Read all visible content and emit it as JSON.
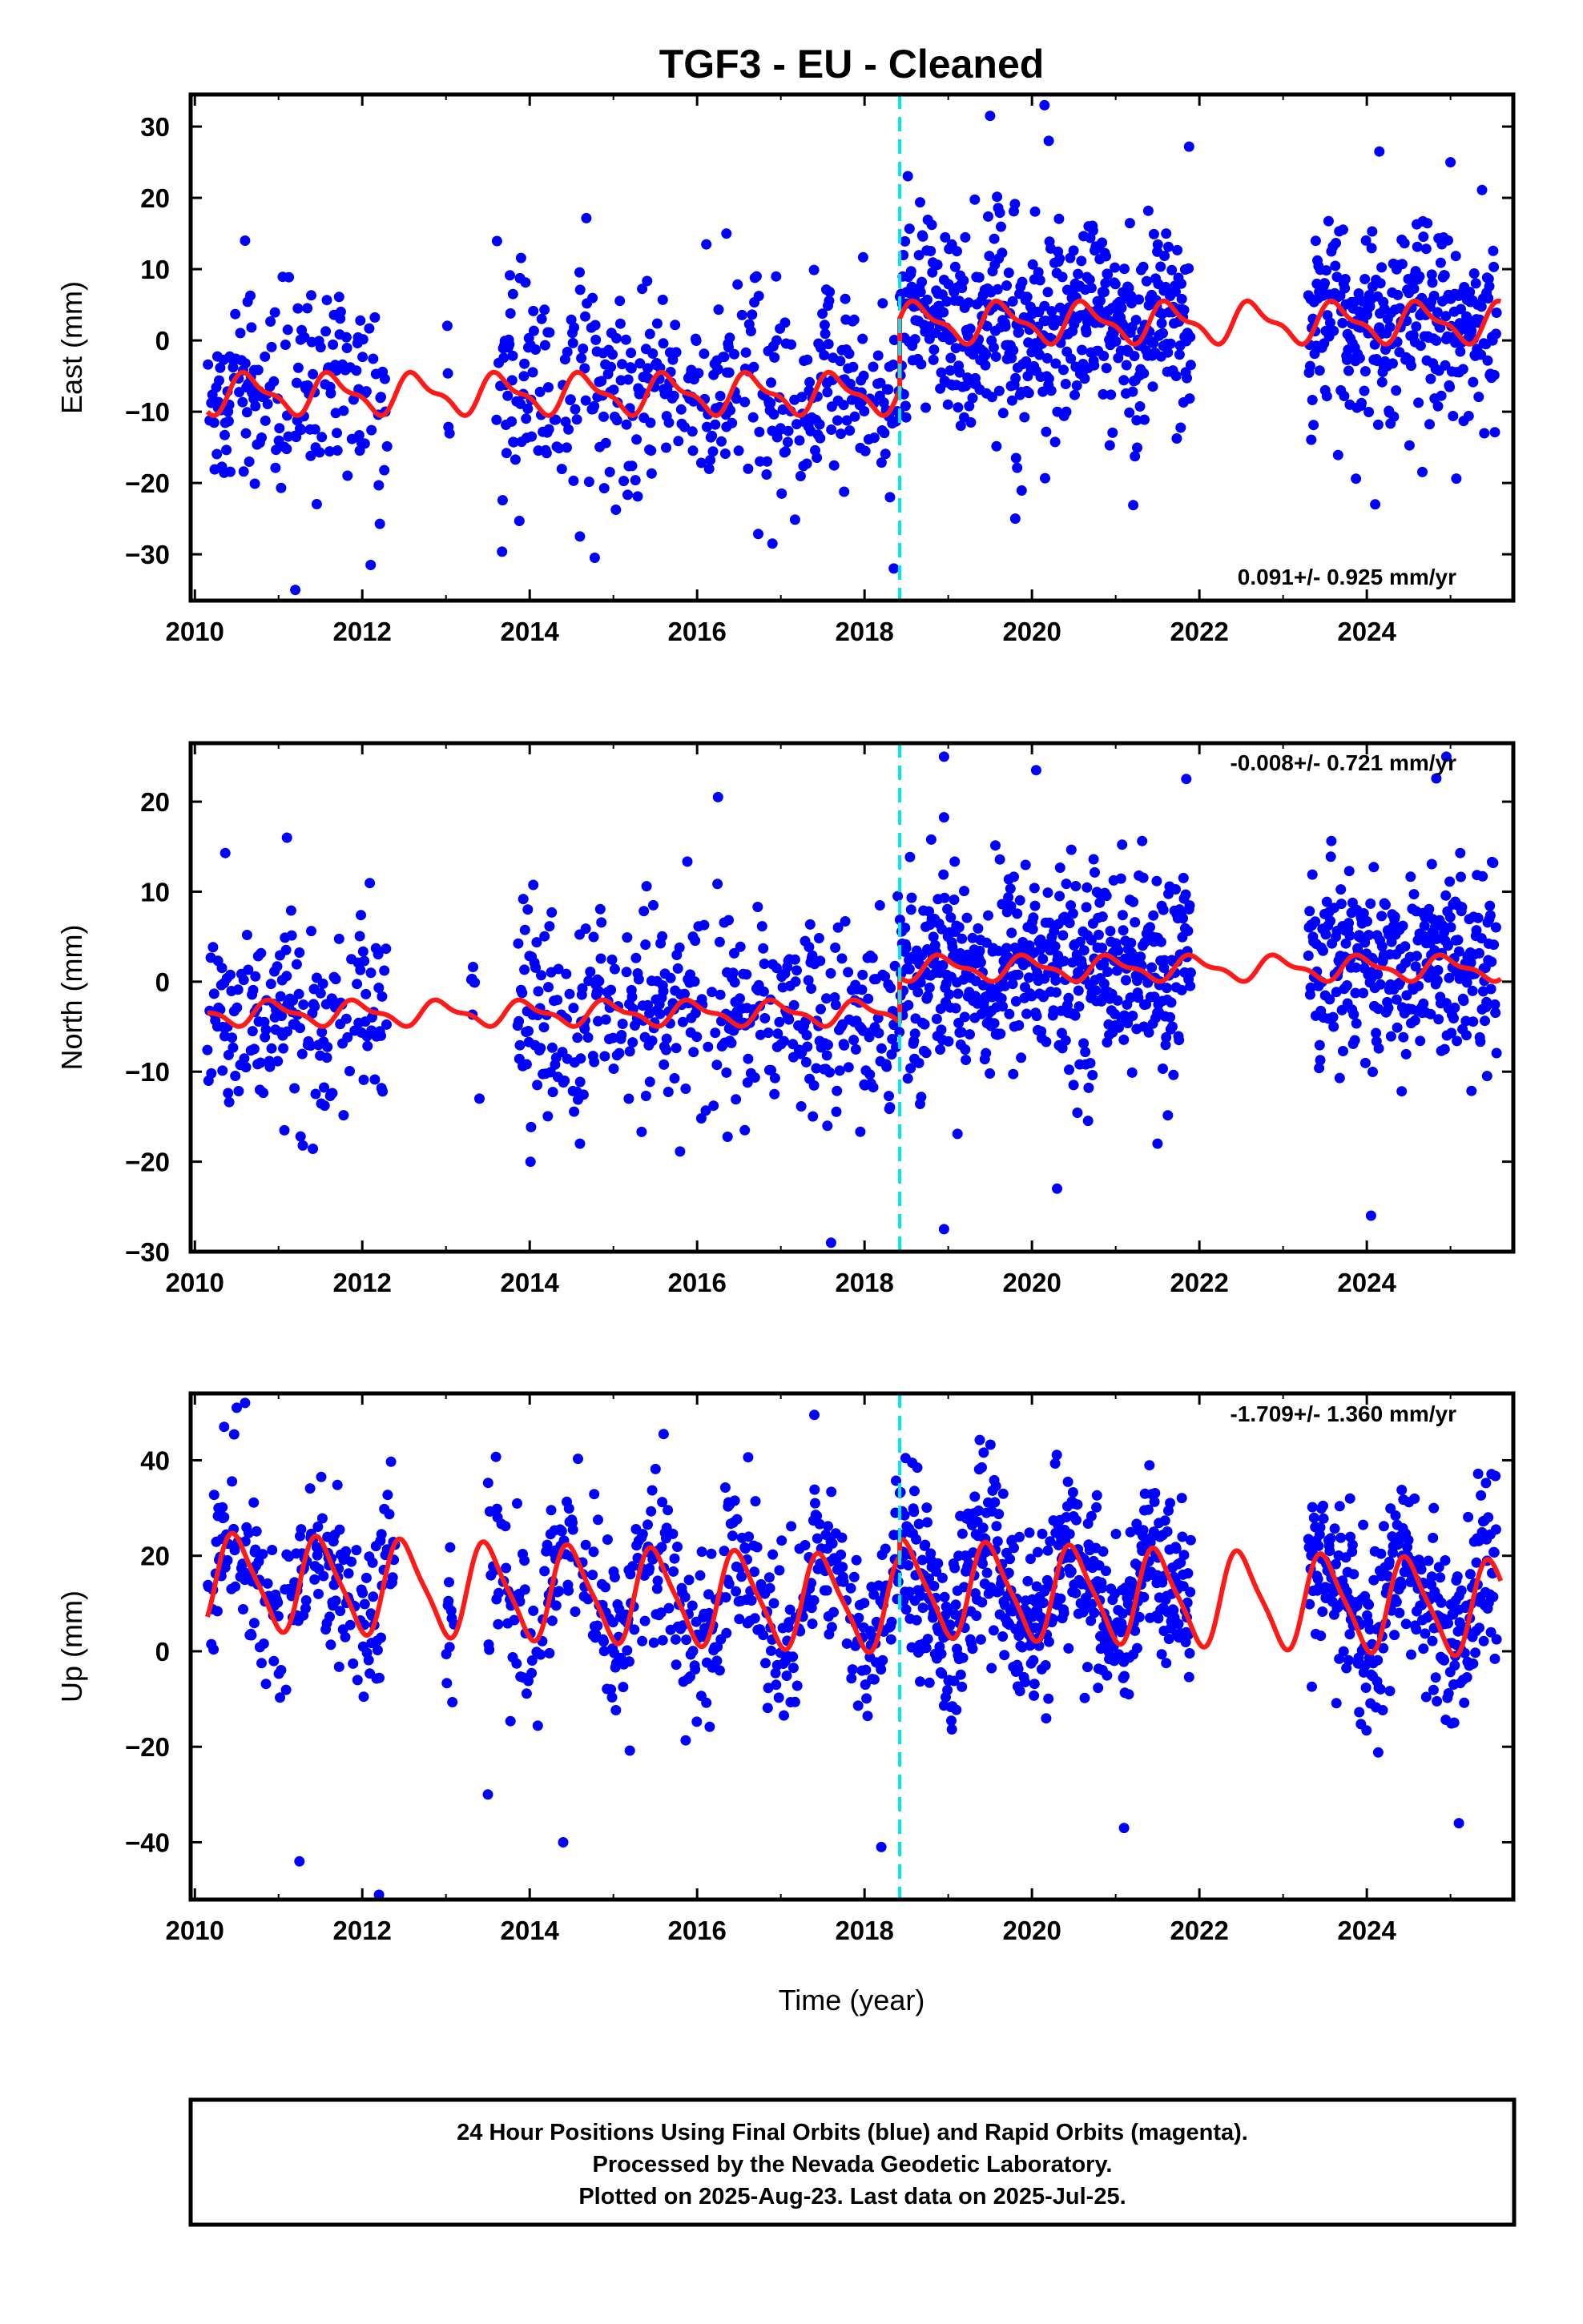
{
  "title": "TGF3  - EU - Cleaned",
  "xlabel": "Time (year)",
  "footer": {
    "line1": "24 Hour Positions Using Final Orbits (blue) and Rapid Orbits (magenta).",
    "line2": "Processed by the Nevada Geodetic Laboratory.",
    "line3": "Plotted on 2025-Aug-23. Last data on 2025-Jul-25."
  },
  "colors": {
    "data": "#0000ff",
    "model": "#ff1a1a",
    "break": "#00e5ee",
    "frame": "#000000"
  },
  "chart_data": [
    {
      "type": "scatter",
      "component": "East",
      "ylabel": "East (mm)",
      "rate": "0.091+/- 0.925 mm/yr",
      "xlim": [
        2009.95,
        2025.75
      ],
      "ylim": [
        -36.5,
        34.5
      ],
      "xticks": [
        2010,
        2012,
        2014,
        2016,
        2018,
        2020,
        2022,
        2024
      ],
      "yticks": [
        -30,
        -20,
        -10,
        0,
        10,
        20,
        30
      ],
      "ytick_labels": [
        "−30",
        "−20",
        "−10",
        "0",
        "10",
        "20",
        "30"
      ],
      "break_epoch": 2018.42,
      "model": {
        "offset_before": -7.5,
        "offset_after": 2.5,
        "annual_amp": 2.5,
        "annual_phase": 0.6,
        "semiannual_amp": 1.0
      },
      "data_spread": 7.0,
      "outliers": [
        [
          2010.6,
          14.0
        ],
        [
          2011.2,
          -35.0
        ],
        [
          2012.1,
          -31.5
        ],
        [
          2016.35,
          15.0
        ],
        [
          2018.35,
          -32.0
        ],
        [
          2019.5,
          31.5
        ],
        [
          2020.15,
          33.0
        ],
        [
          2020.2,
          28.0
        ],
        [
          2024.15,
          26.5
        ],
        [
          2025.0,
          25.0
        ],
        [
          2024.1,
          -23.0
        ],
        [
          2019.8,
          -25.0
        ],
        [
          2013.8,
          6.5
        ],
        [
          2014.6,
          -27.5
        ],
        [
          2016.9,
          -28.5
        ]
      ],
      "data_gaps": [
        [
          2012.3,
          2013.0
        ],
        [
          2013.05,
          2013.6
        ],
        [
          2021.9,
          2023.3
        ]
      ]
    },
    {
      "type": "scatter",
      "component": "North",
      "ylabel": "North (mm)",
      "rate": "-0.008+/- 0.721 mm/yr",
      "xlim": [
        2009.95,
        2025.75
      ],
      "ylim": [
        -30,
        26.5
      ],
      "xticks": [
        2010,
        2012,
        2014,
        2016,
        2018,
        2020,
        2022,
        2024
      ],
      "yticks": [
        -30,
        -20,
        -10,
        0,
        10,
        20
      ],
      "ytick_labels": [
        "−30",
        "−20",
        "−10",
        "0",
        "10",
        "20"
      ],
      "break_epoch": 2018.42,
      "model": {
        "offset_before": -3.5,
        "offset_after": 1.5,
        "annual_amp": 1.2,
        "annual_phase": 0.3,
        "semiannual_amp": 0.5
      },
      "data_spread": 5.5,
      "outliers": [
        [
          2016.25,
          20.5
        ],
        [
          2018.95,
          25.0
        ],
        [
          2020.05,
          23.5
        ],
        [
          2024.95,
          25.0
        ],
        [
          2017.6,
          -29.0
        ],
        [
          2018.95,
          -27.5
        ],
        [
          2024.05,
          -26.0
        ],
        [
          2020.3,
          -23.0
        ],
        [
          2011.1,
          16.0
        ],
        [
          2013.4,
          -13.0
        ],
        [
          2014.6,
          -18.0
        ],
        [
          2021.5,
          -18.0
        ]
      ],
      "data_gaps": [
        [
          2012.3,
          2013.3
        ],
        [
          2013.35,
          2013.85
        ],
        [
          2021.9,
          2023.3
        ]
      ]
    },
    {
      "type": "scatter",
      "component": "Up",
      "ylabel": "Up (mm)",
      "rate": "-1.709+/- 1.360 mm/yr",
      "xlim": [
        2009.95,
        2025.75
      ],
      "ylim": [
        -52,
        54
      ],
      "xticks": [
        2010,
        2012,
        2014,
        2016,
        2018,
        2020,
        2022,
        2024
      ],
      "yticks": [
        -40,
        -20,
        0,
        20,
        40
      ],
      "ytick_labels": [
        "−40",
        "−20",
        "0",
        "20",
        "40"
      ],
      "break_epoch": 2018.42,
      "model": {
        "offset_before": 10.0,
        "offset_after": 13.5,
        "annual_amp": 9.5,
        "annual_phase": -0.25,
        "semiannual_amp": 2.0,
        "trend": -1.709
      },
      "data_spread": 9.0,
      "outliers": [
        [
          2010.35,
          47.0
        ],
        [
          2010.5,
          51.0
        ],
        [
          2010.6,
          52.0
        ],
        [
          2012.2,
          -51.0
        ],
        [
          2015.6,
          45.5
        ],
        [
          2017.4,
          49.5
        ],
        [
          2011.25,
          -44.0
        ],
        [
          2014.4,
          -40.0
        ],
        [
          2018.2,
          -41.0
        ],
        [
          2021.1,
          -37.0
        ],
        [
          2013.5,
          -30.0
        ],
        [
          2023.8,
          32.0
        ],
        [
          2024.8,
          30.0
        ],
        [
          2025.1,
          -36.0
        ],
        [
          2019.4,
          38.5
        ]
      ],
      "data_gaps": [
        [
          2012.4,
          2013.0
        ],
        [
          2013.1,
          2013.5
        ],
        [
          2021.9,
          2023.3
        ]
      ]
    }
  ]
}
